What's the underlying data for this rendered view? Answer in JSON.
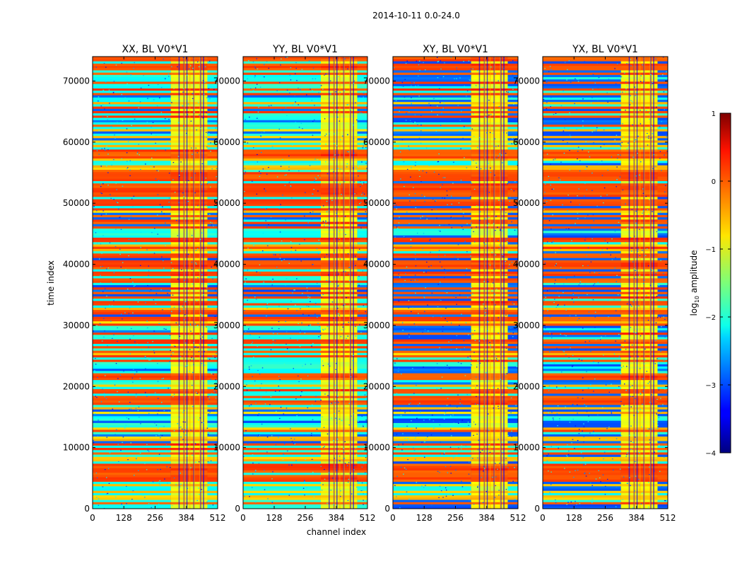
{
  "figure": {
    "suptitle": "2014-10-11 0.0-24.0"
  },
  "chart_data": {
    "type": "heatmap",
    "xlabel": "channel index",
    "ylabel": "time index",
    "x_ticks": [
      0,
      128,
      256,
      384,
      512
    ],
    "y_ticks": [
      0,
      10000,
      20000,
      30000,
      40000,
      50000,
      60000,
      70000
    ],
    "xlim": [
      0,
      512
    ],
    "ylim": [
      0,
      74000
    ],
    "panels": [
      {
        "title": "XX, BL V0*V1",
        "pol": "XX"
      },
      {
        "title": "YY, BL V0*V1",
        "pol": "YY"
      },
      {
        "title": "XY, BL V0*V1",
        "pol": "XY"
      },
      {
        "title": "YX, BL V0*V1",
        "pol": "YX"
      }
    ],
    "colorbar": {
      "label_prefix": "log",
      "label_sub": "10",
      "label_suffix": " amplitude",
      "ticks": [
        1,
        0,
        -1,
        -2,
        -3,
        -4
      ],
      "tick_labels": [
        "1",
        "0",
        "−1",
        "−2",
        "−3",
        "−4"
      ],
      "range": [
        -4,
        1
      ],
      "colormap": "jet"
    }
  }
}
